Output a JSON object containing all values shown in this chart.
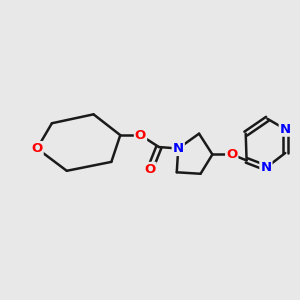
{
  "background_color": "#e8e8e8",
  "bond_color": "#1a1a1a",
  "oxygen_color": "#ff0000",
  "nitrogen_color": "#0000ff",
  "bond_width": 1.8,
  "font_size": 9.5,
  "fig_width": 3.0,
  "fig_height": 3.0,
  "dpi": 100,
  "xlim": [
    0,
    10
  ],
  "ylim": [
    0,
    10
  ]
}
